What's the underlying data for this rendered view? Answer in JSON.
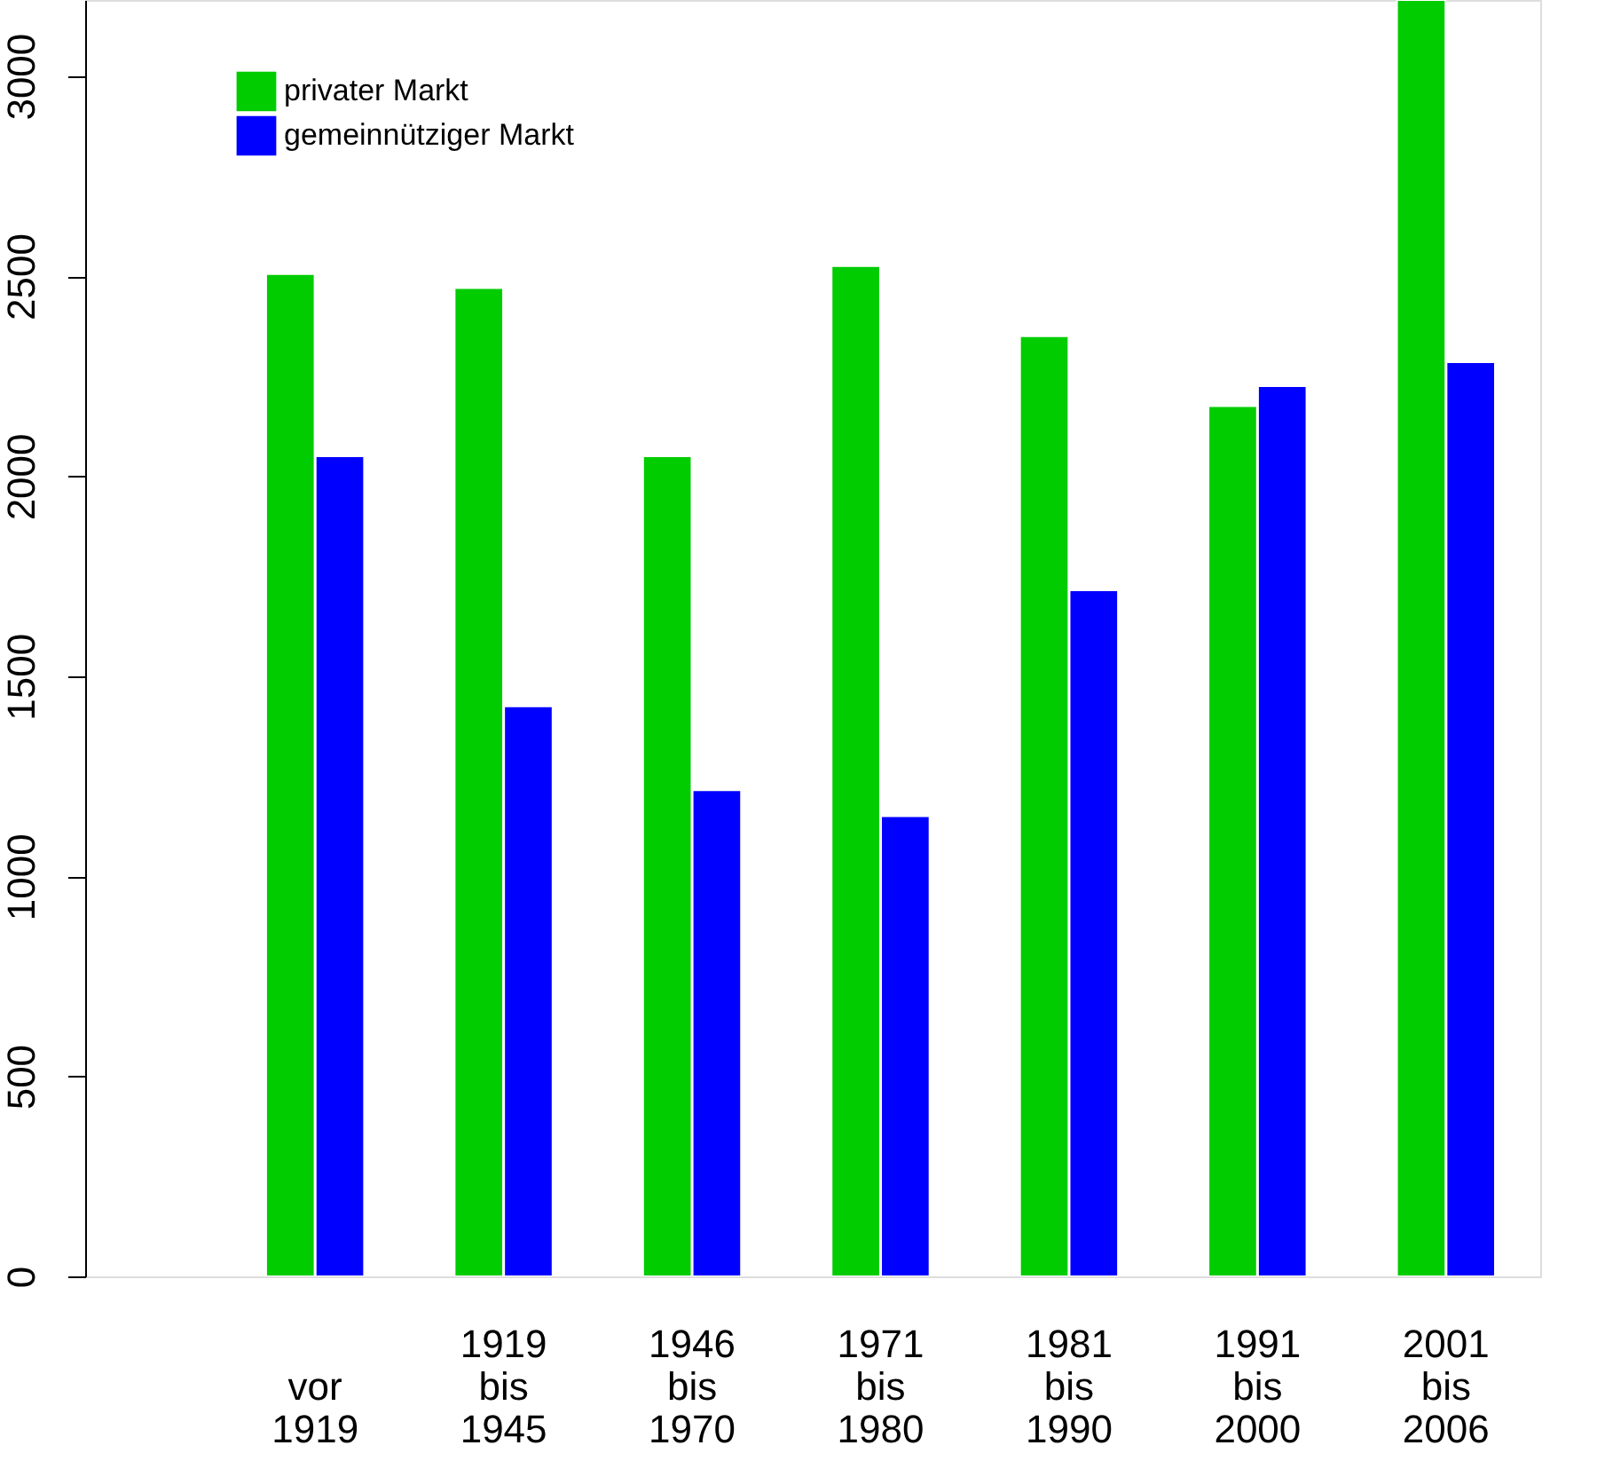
{
  "chart_data": {
    "type": "bar",
    "categories": [
      "vor\n1919",
      "1919\nbis\n1945",
      "1946\nbis\n1970",
      "1971\nbis\n1980",
      "1981\nbis\n1990",
      "1991\nbis\n2000",
      "2001\nbis\n2006"
    ],
    "series": [
      {
        "name": "privater Markt",
        "color": "#00cc00",
        "values": [
          2505,
          2470,
          2050,
          2525,
          2350,
          2175,
          3190
        ]
      },
      {
        "name": "gemeinnütziger Markt",
        "color": "#0000ff",
        "values": [
          2050,
          1425,
          1215,
          1150,
          1715,
          2225,
          2285
        ]
      }
    ],
    "ylim": [
      0,
      3190
    ],
    "yticks": [
      0,
      500,
      1000,
      1500,
      2000,
      2500,
      3000
    ],
    "grid": false,
    "legend": "top left"
  }
}
